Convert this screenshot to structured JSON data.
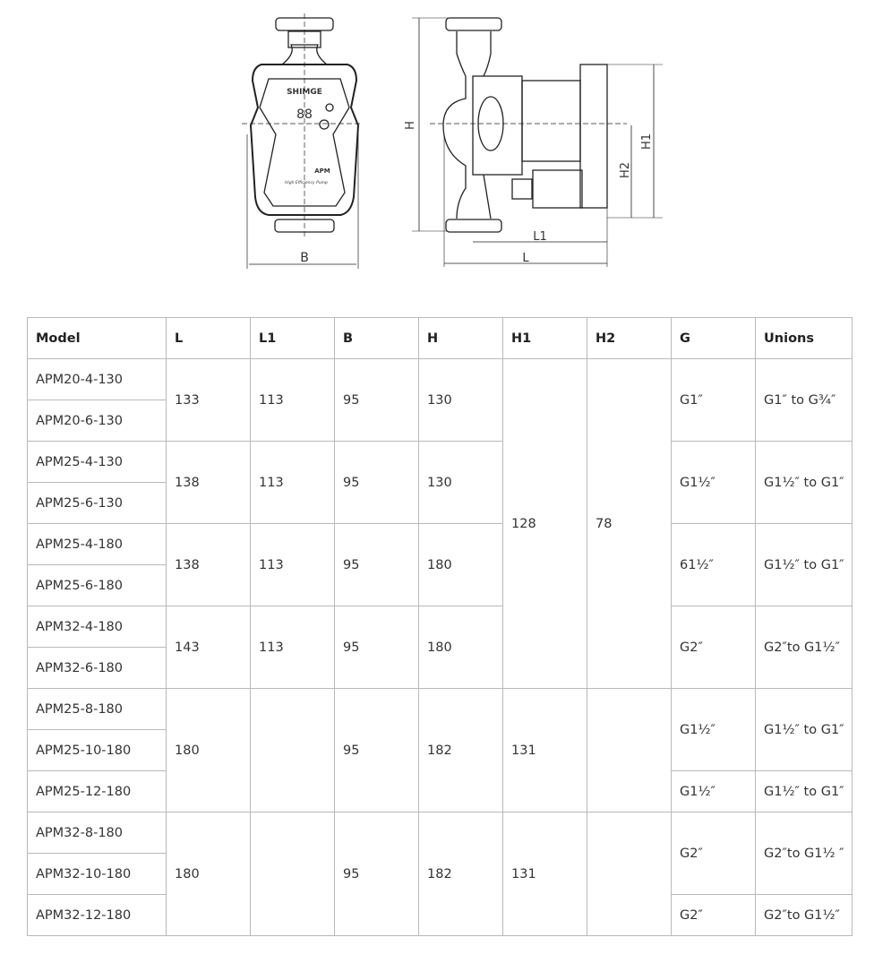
{
  "drawing": {
    "brand": "SHIMGE",
    "model_mark": "APM",
    "caption": "High Efficiency Pump",
    "display": "88",
    "dims": {
      "B": "B",
      "H": "H",
      "H1": "H1",
      "H2": "H2",
      "L1": "L1",
      "L": "L"
    }
  },
  "table": {
    "headers": [
      "Model",
      "L",
      "L1",
      "B",
      "H",
      "H1",
      "H2",
      "G",
      "Unions"
    ],
    "models": [
      "APM20-4-130",
      "APM20-6-130",
      "APM25-4-130",
      "APM25-6-130",
      "APM25-4-180",
      "APM25-6-180",
      "APM32-4-180",
      "APM32-6-180",
      "APM25-8-180",
      "APM25-10-180",
      "APM25-12-180",
      "APM32-8-180",
      "APM32-10-180",
      "APM32-12-180"
    ],
    "groups": [
      {
        "L": "133",
        "L1": "113",
        "B": "95",
        "H": "130",
        "G": "G1″",
        "unions": "G1″ to G¾″"
      },
      {
        "L": "138",
        "L1": "113",
        "B": "95",
        "H": "130",
        "G": "G1½″",
        "unions": "G1½″ to G1″"
      },
      {
        "L": "138",
        "L1": "113",
        "B": "95",
        "H": "180",
        "G": "61½″",
        "unions": "G1½″ to G1″"
      },
      {
        "L": "143",
        "L1": "113",
        "B": "95",
        "H": "180",
        "G": "G2″",
        "unions": "G2″to G1½″"
      },
      {
        "L": "180",
        "L1": "",
        "B": "95",
        "H": "182",
        "H1": "131",
        "H2": "",
        "G": "G1½″",
        "unions": "G1½″ to G1″",
        "G2": "G1½″",
        "unions2": "G1½″ to G1″"
      },
      {
        "L": "180",
        "L1": "",
        "B": "95",
        "H": "182",
        "H1": "131",
        "H2": "",
        "G": "G2″",
        "unions": "G2″to G1½ ″",
        "G2": "G2″",
        "unions2": "G2″to G1½″"
      }
    ],
    "shared": {
      "H1": "128",
      "H2": "78"
    }
  }
}
